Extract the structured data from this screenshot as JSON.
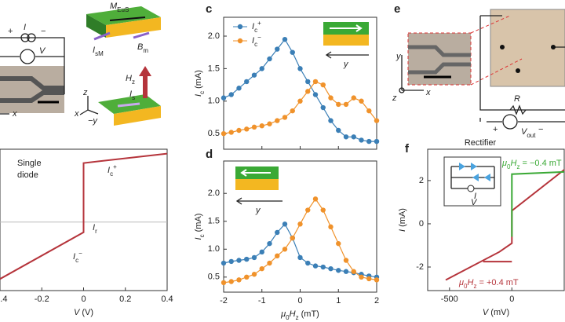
{
  "chart_data": [
    {
      "type": "line",
      "x": [
        -0.4,
        0,
        0,
        0.4
      ],
      "values": [
        -0.78,
        -0.14,
        0.81,
        0.94
      ],
      "color": "#b5343b",
      "xlim": [
        -0.4,
        0.4
      ],
      "ylim": [
        -0.94,
        1.0
      ],
      "xticks": [
        -0.4,
        -0.2,
        0,
        0.2,
        0.4
      ],
      "xlabel": [
        {
          "text": "V",
          "style": "italic"
        },
        {
          "text": " (V)"
        }
      ],
      "zero_line": true,
      "markers": false
    },
    {
      "type": "line",
      "x": [
        -2,
        -1.8,
        -1.6,
        -1.4,
        -1.2,
        -1,
        -0.8,
        -0.6,
        -0.4,
        -0.2,
        0,
        0.2,
        0.4,
        0.6,
        0.8,
        1,
        1.2,
        1.4,
        1.6,
        1.8,
        2
      ],
      "series": [
        {
          "name": [
            {
              "text": "I",
              "style": "italic"
            },
            {
              "text": "c",
              "style": "sub"
            },
            {
              "text": "+",
              "style": "sup"
            }
          ],
          "color": "#3b7fb6",
          "values": [
            1.05,
            1.1,
            1.2,
            1.3,
            1.4,
            1.5,
            1.65,
            1.8,
            1.95,
            1.75,
            1.5,
            1.3,
            1.1,
            0.9,
            0.7,
            0.55,
            0.45,
            0.45,
            0.4,
            0.38,
            0.38
          ]
        },
        {
          "name": [
            {
              "text": "I",
              "style": "italic"
            },
            {
              "text": "c",
              "style": "sub"
            },
            {
              "text": "−",
              "style": "sup"
            }
          ],
          "color": "#f0922b",
          "values": [
            0.5,
            0.52,
            0.55,
            0.57,
            0.6,
            0.62,
            0.65,
            0.7,
            0.75,
            0.85,
            1.0,
            1.15,
            1.3,
            1.25,
            1.05,
            0.95,
            0.95,
            1.05,
            1.0,
            0.85,
            0.7
          ]
        }
      ],
      "xlim": [
        -2,
        2
      ],
      "ylim": [
        0.26,
        2.29
      ],
      "xticks": [
        -2,
        -1,
        0,
        1,
        2
      ],
      "xtick_labels": false,
      "yticks": [
        0.5,
        {
          "value": 1,
          "label": "1.0"
        },
        1.5,
        {
          "value": 2,
          "label": "2.0"
        }
      ],
      "ylabel": [
        {
          "text": "I",
          "style": "italic"
        },
        {
          "text": "c",
          "style": "sub"
        },
        {
          "text": " (mA)"
        }
      ],
      "markers": true,
      "legend": "top-left"
    },
    {
      "type": "line",
      "x": [
        -2,
        -1.8,
        -1.6,
        -1.4,
        -1.2,
        -1,
        -0.8,
        -0.6,
        -0.4,
        -0.2,
        0,
        0.2,
        0.4,
        0.6,
        0.8,
        1,
        1.2,
        1.4,
        1.6,
        1.8,
        2
      ],
      "series": [
        {
          "color": "#3b7fb6",
          "values": [
            0.75,
            0.78,
            0.8,
            0.82,
            0.85,
            0.95,
            1.1,
            1.3,
            1.45,
            1.2,
            0.85,
            0.75,
            0.7,
            0.68,
            0.65,
            0.62,
            0.6,
            0.58,
            0.55,
            0.52,
            0.5
          ]
        },
        {
          "color": "#f0922b",
          "values": [
            0.4,
            0.42,
            0.45,
            0.5,
            0.55,
            0.65,
            0.75,
            0.88,
            1.0,
            1.2,
            1.45,
            1.7,
            1.9,
            1.7,
            1.4,
            1.1,
            0.8,
            0.6,
            0.5,
            0.47,
            0.45
          ]
        }
      ],
      "xlim": [
        -2,
        2
      ],
      "ylim": [
        0.23,
        2.58
      ],
      "xticks": [
        -2,
        -1,
        0,
        1,
        2
      ],
      "yticks": [
        0.5,
        {
          "value": 1,
          "label": "1.0"
        },
        1.5,
        {
          "value": 2,
          "label": "2.0"
        }
      ],
      "xlabel": [
        {
          "text": "μ",
          "style": "italic"
        },
        {
          "text": "0",
          "style": "sub"
        },
        {
          "text": "H",
          "style": "italic"
        },
        {
          "text": "z",
          "style": "sub"
        },
        {
          "text": " (mT)"
        }
      ],
      "ylabel": [
        {
          "text": "I",
          "style": "italic"
        },
        {
          "text": "c",
          "style": "sub"
        },
        {
          "text": " (mA)"
        }
      ],
      "markers": true
    },
    {
      "type": "line",
      "title": "Rectifier",
      "series": [
        {
          "color": "#b5343b",
          "x": [
            -530,
            -100,
            0,
            0,
            420,
            null,
            -230,
            0
          ],
          "values": [
            -2.6,
            -1.3,
            -0.9,
            0.6,
            2.5,
            null,
            -1.75,
            -1.75
          ]
        },
        {
          "color": "#3aa935",
          "x": [
            0,
            0,
            420
          ],
          "values": [
            -0.6,
            2.3,
            2.4
          ]
        }
      ],
      "xlim": [
        -675,
        420
      ],
      "ylim": [
        -3.09,
        3.45
      ],
      "xticks": [
        -500,
        0
      ],
      "yticks": [
        -2,
        0,
        2
      ],
      "xlabel": [
        {
          "text": "V",
          "style": "italic"
        },
        {
          "text": " (mV)"
        }
      ],
      "ylabel": [
        {
          "text": "I",
          "style": "italic"
        },
        {
          "text": " (mA)"
        }
      ],
      "markers": false
    }
  ],
  "panel_labels": [
    "c",
    "d",
    "e",
    "f"
  ],
  "diagram": {
    "I": [
      {
        "text": "I",
        "style": "italic"
      }
    ],
    "V": [
      {
        "text": "V",
        "style": "italic"
      }
    ],
    "plus": "+",
    "minus": "−",
    "x": [
      {
        "text": "x",
        "style": "italic"
      }
    ],
    "M": [
      {
        "text": "M",
        "style": "italic"
      },
      {
        "text": "EuS",
        "style": "sub"
      }
    ],
    "IsM": [
      {
        "text": "I",
        "style": "italic"
      },
      {
        "text": "sM",
        "style": "sub"
      }
    ],
    "Bm": [
      {
        "text": "B",
        "style": "italic"
      },
      {
        "text": "m",
        "style": "sub"
      }
    ],
    "Hz": [
      {
        "text": "H",
        "style": "italic"
      },
      {
        "text": "z",
        "style": "sub"
      }
    ],
    "Is": [
      {
        "text": "I",
        "style": "italic"
      },
      {
        "text": "s",
        "style": "sub"
      }
    ],
    "z": [
      {
        "text": "z",
        "style": "italic"
      }
    ],
    "my": [
      {
        "text": "−y",
        "style": "italic"
      }
    ],
    "y": [
      {
        "text": "y",
        "style": "italic"
      }
    ],
    "R": [
      {
        "text": "R",
        "style": "italic"
      }
    ],
    "Vout": [
      {
        "text": "V",
        "style": "italic"
      },
      {
        "text": "out",
        "style": "sub"
      }
    ],
    "single": "Single",
    "diode": "diode",
    "Icp": [
      {
        "text": "I",
        "style": "italic"
      },
      {
        "text": "c",
        "style": "sub"
      },
      {
        "text": "+",
        "style": "sup"
      }
    ],
    "Ir": [
      {
        "text": "I",
        "style": "italic"
      },
      {
        "text": "r",
        "style": "sub"
      }
    ],
    "Icm": [
      {
        "text": "I",
        "style": "italic"
      },
      {
        "text": "c",
        "style": "sub"
      },
      {
        "text": "−",
        "style": "sup"
      }
    ],
    "field_neg": [
      {
        "text": "μ",
        "style": "italic"
      },
      {
        "text": "0",
        "style": "sub"
      },
      {
        "text": "H",
        "style": "italic"
      },
      {
        "text": "z",
        "style": "sub"
      },
      {
        "text": " = −0.4 mT"
      }
    ],
    "field_pos": [
      {
        "text": "μ",
        "style": "italic"
      },
      {
        "text": "0",
        "style": "sub"
      },
      {
        "text": "H",
        "style": "italic"
      },
      {
        "text": "z",
        "style": "sub"
      },
      {
        "text": " = +0.4 mT"
      }
    ]
  }
}
